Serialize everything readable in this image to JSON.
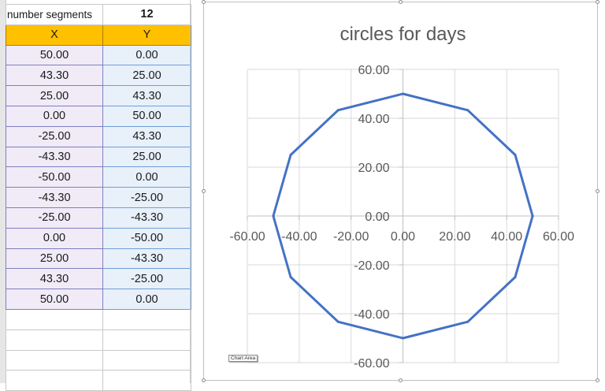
{
  "sheet": {
    "segments_label": "number segments",
    "segments_value": "12",
    "col_x_header": "X",
    "col_y_header": "Y",
    "rows": [
      {
        "x": "50.00",
        "y": "0.00"
      },
      {
        "x": "43.30",
        "y": "25.00"
      },
      {
        "x": "25.00",
        "y": "43.30"
      },
      {
        "x": "0.00",
        "y": "50.00"
      },
      {
        "x": "-25.00",
        "y": "43.30"
      },
      {
        "x": "-43.30",
        "y": "25.00"
      },
      {
        "x": "-50.00",
        "y": "0.00"
      },
      {
        "x": "-43.30",
        "y": "-25.00"
      },
      {
        "x": "-25.00",
        "y": "-43.30"
      },
      {
        "x": "0.00",
        "y": "-50.00"
      },
      {
        "x": "25.00",
        "y": "-43.30"
      },
      {
        "x": "43.30",
        "y": "-25.00"
      },
      {
        "x": "50.00",
        "y": "0.00"
      }
    ]
  },
  "chart_tooltip": "Chart Area",
  "chart_data": {
    "type": "scatter",
    "title": "circles for days",
    "xlim": [
      -60,
      60
    ],
    "ylim": [
      -60,
      60
    ],
    "xticks": [
      "-60.00",
      "-40.00",
      "-20.00",
      "0.00",
      "20.00",
      "40.00",
      "60.00"
    ],
    "yticks": [
      "60.00",
      "40.00",
      "20.00",
      "0.00",
      "-20.00",
      "-40.00",
      "-60.00"
    ],
    "grid": true,
    "line_color": "#4472c4",
    "series": [
      {
        "x": [
          50,
          43.3,
          25,
          0,
          -25,
          -43.3,
          -50,
          -43.3,
          -25,
          0,
          25,
          43.3,
          50
        ],
        "y": [
          0,
          25,
          43.3,
          50,
          43.3,
          25,
          0,
          -25,
          -43.3,
          -50,
          -43.3,
          -25,
          0
        ]
      }
    ]
  }
}
